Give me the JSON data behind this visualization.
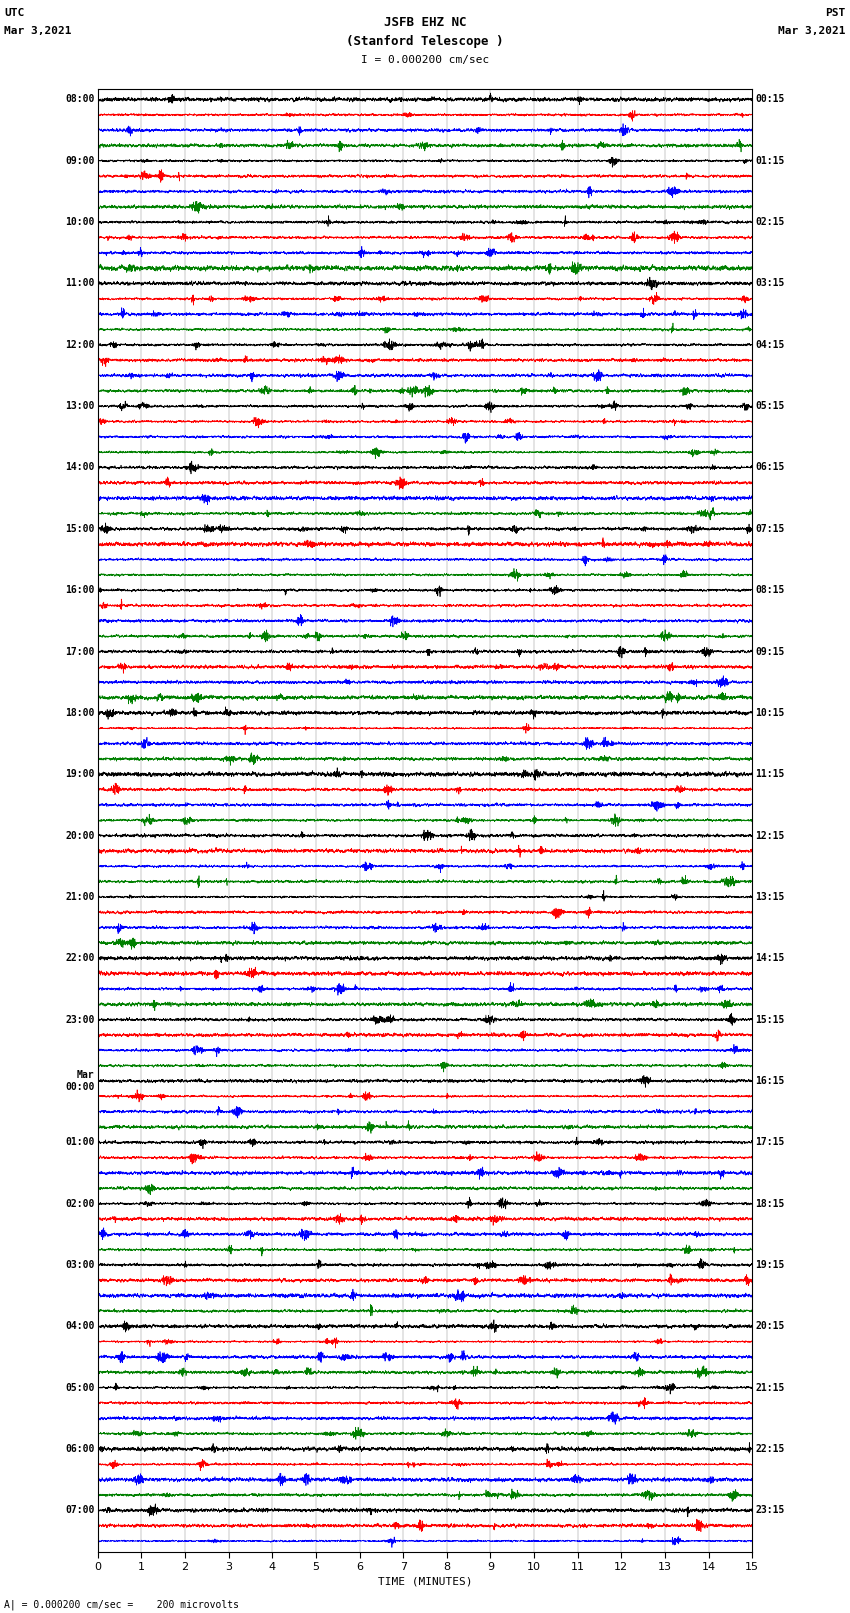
{
  "title_line1": "JSFB EHZ NC",
  "title_line2": "(Stanford Telescope )",
  "scale_label": "I = 0.000200 cm/sec",
  "left_header_line1": "UTC",
  "left_header_line2": "Mar 3,2021",
  "right_header_line1": "PST",
  "right_header_line2": "Mar 3,2021",
  "bottom_label": "TIME (MINUTES)",
  "bottom_note": "= 0.000200 cm/sec =    200 microvolts",
  "xlabel_ticks": [
    0,
    1,
    2,
    3,
    4,
    5,
    6,
    7,
    8,
    9,
    10,
    11,
    12,
    13,
    14,
    15
  ],
  "x_min": 0,
  "x_max": 15,
  "colors": [
    "black",
    "red",
    "blue",
    "green"
  ],
  "left_times": [
    "08:00",
    "",
    "",
    "",
    "09:00",
    "",
    "",
    "",
    "10:00",
    "",
    "",
    "",
    "11:00",
    "",
    "",
    "",
    "12:00",
    "",
    "",
    "",
    "13:00",
    "",
    "",
    "",
    "14:00",
    "",
    "",
    "",
    "15:00",
    "",
    "",
    "",
    "16:00",
    "",
    "",
    "",
    "17:00",
    "",
    "",
    "",
    "18:00",
    "",
    "",
    "",
    "19:00",
    "",
    "",
    "",
    "20:00",
    "",
    "",
    "",
    "21:00",
    "",
    "",
    "",
    "22:00",
    "",
    "",
    "",
    "23:00",
    "",
    "",
    "",
    "Mar\n00:00",
    "",
    "",
    "",
    "01:00",
    "",
    "",
    "",
    "02:00",
    "",
    "",
    "",
    "03:00",
    "",
    "",
    "",
    "04:00",
    "",
    "",
    "",
    "05:00",
    "",
    "",
    "",
    "06:00",
    "",
    "",
    "",
    "07:00",
    "",
    ""
  ],
  "right_times": [
    "00:15",
    "",
    "",
    "",
    "01:15",
    "",
    "",
    "",
    "02:15",
    "",
    "",
    "",
    "03:15",
    "",
    "",
    "",
    "04:15",
    "",
    "",
    "",
    "05:15",
    "",
    "",
    "",
    "06:15",
    "",
    "",
    "",
    "07:15",
    "",
    "",
    "",
    "08:15",
    "",
    "",
    "",
    "09:15",
    "",
    "",
    "",
    "10:15",
    "",
    "",
    "",
    "11:15",
    "",
    "",
    "",
    "12:15",
    "",
    "",
    "",
    "13:15",
    "",
    "",
    "",
    "14:15",
    "",
    "",
    "",
    "15:15",
    "",
    "",
    "",
    "16:15",
    "",
    "",
    "",
    "17:15",
    "",
    "",
    "",
    "18:15",
    "",
    "",
    "",
    "19:15",
    "",
    "",
    "",
    "20:15",
    "",
    "",
    "",
    "21:15",
    "",
    "",
    "",
    "22:15",
    "",
    "",
    "",
    "23:15",
    "",
    ""
  ],
  "num_traces": 95,
  "seed": 42,
  "bg_color": "white",
  "trace_amplitude": 0.42,
  "trace_points": 4500
}
